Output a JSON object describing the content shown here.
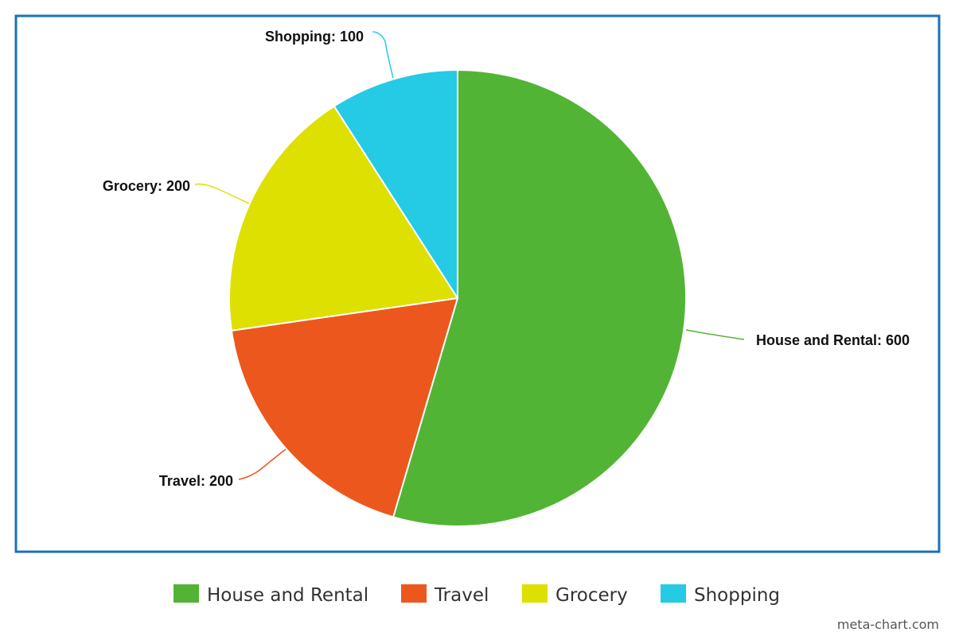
{
  "chart_data": {
    "type": "pie",
    "unit_suffix": "",
    "slices": [
      {
        "label": "House and Rental",
        "value": 600,
        "color": "#52b434",
        "data_label": "House and Rental: 600"
      },
      {
        "label": "Travel",
        "value": 200,
        "color": "#ec571e",
        "data_label": "Travel: 200"
      },
      {
        "label": "Grocery",
        "value": 200,
        "color": "#dde000",
        "data_label": "Grocery: 200"
      },
      {
        "label": "Shopping",
        "value": 100,
        "color": "#25cae4",
        "data_label": "Shopping: 100"
      }
    ],
    "legend_position": "bottom",
    "frame_color": "#1a72b8"
  },
  "credit": "meta-chart.com"
}
